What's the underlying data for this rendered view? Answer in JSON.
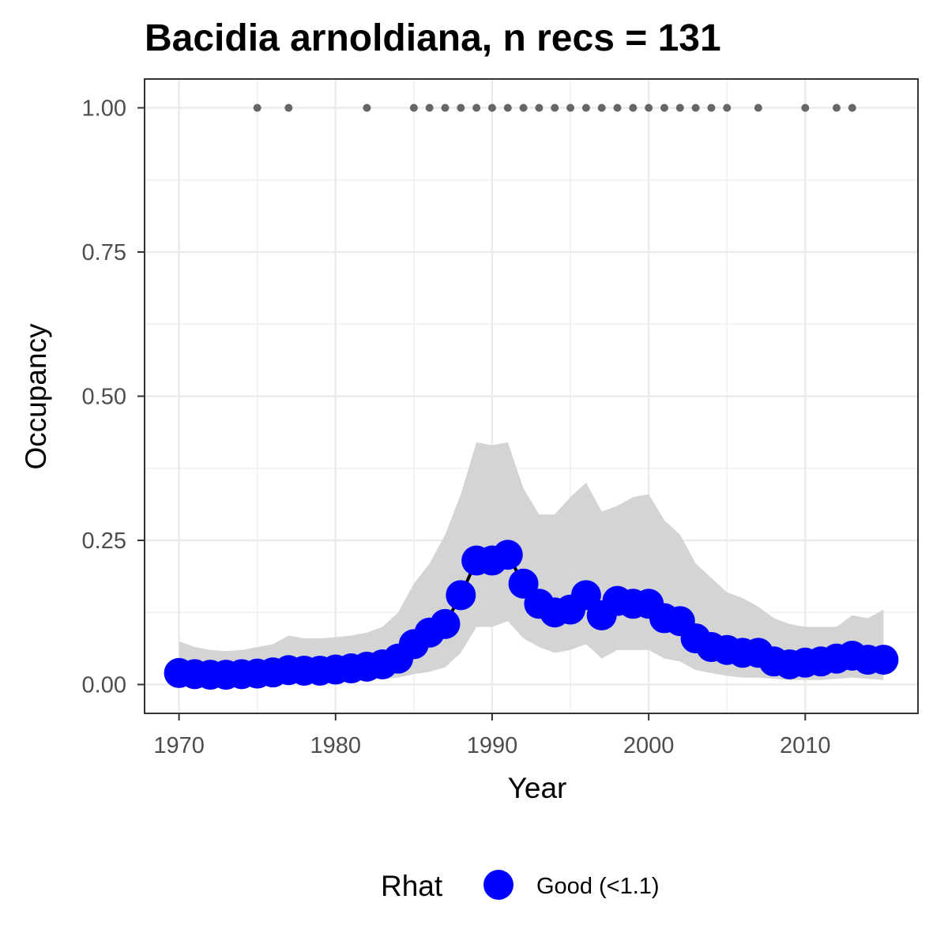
{
  "chart_data": {
    "type": "line",
    "title": "Bacidia arnoldiana, n recs = 131",
    "xlabel": "Year",
    "ylabel": "Occupancy",
    "xlim": [
      1967.8,
      2017.2
    ],
    "ylim": [
      -0.05,
      1.05
    ],
    "x_ticks": [
      1970,
      1980,
      1990,
      2000,
      2010
    ],
    "x_tick_labels": [
      "1970",
      "1980",
      "1990",
      "2000",
      "2010"
    ],
    "y_ticks": [
      0,
      0.25,
      0.5,
      0.75,
      1.0
    ],
    "y_tick_labels": [
      "0.00",
      "0.25",
      "0.50",
      "0.75",
      "1.00"
    ],
    "grid": true,
    "legend": {
      "title": "Rhat",
      "position": "bottom",
      "entries": [
        {
          "label": "Good (<1.1)",
          "color": "#0000ff"
        }
      ]
    },
    "series": [
      {
        "name": "Good (<1.1)",
        "color": "#0000ff",
        "x": [
          1970,
          1971,
          1972,
          1973,
          1974,
          1975,
          1976,
          1977,
          1978,
          1979,
          1980,
          1981,
          1982,
          1983,
          1984,
          1985,
          1986,
          1987,
          1988,
          1989,
          1990,
          1991,
          1992,
          1993,
          1994,
          1995,
          1996,
          1997,
          1998,
          1999,
          2000,
          2001,
          2002,
          2003,
          2004,
          2005,
          2006,
          2007,
          2008,
          2009,
          2010,
          2011,
          2012,
          2013,
          2014,
          2015
        ],
        "y": [
          0.02,
          0.018,
          0.017,
          0.017,
          0.018,
          0.019,
          0.021,
          0.025,
          0.024,
          0.024,
          0.026,
          0.028,
          0.031,
          0.035,
          0.045,
          0.07,
          0.09,
          0.105,
          0.155,
          0.215,
          0.215,
          0.225,
          0.175,
          0.14,
          0.125,
          0.13,
          0.155,
          0.12,
          0.145,
          0.14,
          0.14,
          0.115,
          0.11,
          0.08,
          0.065,
          0.06,
          0.055,
          0.055,
          0.04,
          0.035,
          0.038,
          0.04,
          0.045,
          0.05,
          0.043,
          0.043
        ],
        "lower": [
          0.002,
          0.002,
          0.002,
          0.002,
          0.002,
          0.002,
          0.003,
          0.004,
          0.004,
          0.004,
          0.005,
          0.006,
          0.007,
          0.01,
          0.012,
          0.018,
          0.022,
          0.03,
          0.055,
          0.1,
          0.1,
          0.11,
          0.08,
          0.065,
          0.055,
          0.06,
          0.07,
          0.045,
          0.06,
          0.06,
          0.06,
          0.045,
          0.04,
          0.025,
          0.02,
          0.015,
          0.012,
          0.012,
          0.01,
          0.008,
          0.008,
          0.008,
          0.01,
          0.012,
          0.01,
          0.008
        ],
        "upper": [
          0.075,
          0.065,
          0.06,
          0.058,
          0.06,
          0.065,
          0.07,
          0.085,
          0.08,
          0.08,
          0.082,
          0.085,
          0.09,
          0.1,
          0.125,
          0.175,
          0.21,
          0.26,
          0.33,
          0.42,
          0.415,
          0.42,
          0.34,
          0.295,
          0.295,
          0.325,
          0.35,
          0.3,
          0.31,
          0.325,
          0.33,
          0.285,
          0.26,
          0.21,
          0.185,
          0.16,
          0.15,
          0.135,
          0.115,
          0.105,
          0.1,
          0.1,
          0.1,
          0.12,
          0.115,
          0.13
        ]
      }
    ],
    "record_years": {
      "y": 1.0,
      "color": "#666666",
      "x": [
        1975,
        1977,
        1982,
        1985,
        1986,
        1987,
        1988,
        1989,
        1990,
        1991,
        1992,
        1993,
        1994,
        1995,
        1996,
        1997,
        1998,
        1999,
        2000,
        2001,
        2002,
        2003,
        2004,
        2005,
        2007,
        2010,
        2012,
        2013
      ]
    },
    "band_color": "#d4d4d4",
    "line_color": "#000000"
  }
}
